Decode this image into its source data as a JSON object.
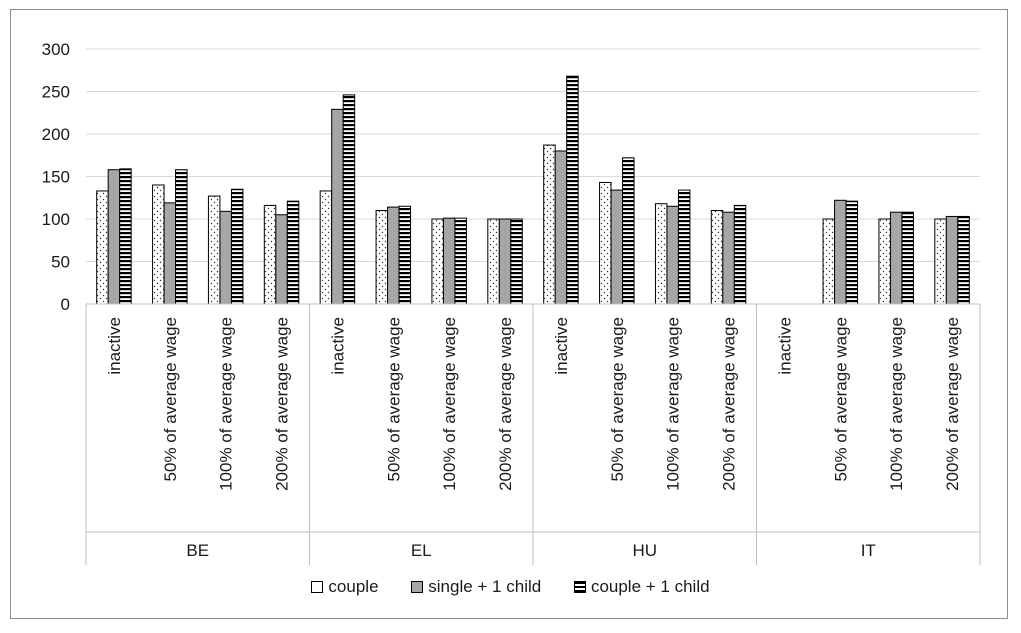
{
  "chart_data": {
    "type": "bar",
    "groups": [
      {
        "name": "BE",
        "categories": [
          "inactive",
          "50% of average wage",
          "100% of average wage",
          "200% of average wage"
        ]
      },
      {
        "name": "EL",
        "categories": [
          "inactive",
          "50% of average wage",
          "100% of average wage",
          "200% of average wage"
        ]
      },
      {
        "name": "HU",
        "categories": [
          "inactive",
          "50% of average wage",
          "100% of average wage",
          "200% of average wage"
        ]
      },
      {
        "name": "IT",
        "categories": [
          "inactive",
          "50% of average wage",
          "100% of average wage",
          "200% of average wage"
        ]
      }
    ],
    "series": [
      {
        "name": "couple",
        "pattern": "dotted",
        "values": [
          133,
          140,
          127,
          116,
          133,
          110,
          100,
          100,
          187,
          143,
          118,
          110,
          null,
          100,
          100,
          100
        ]
      },
      {
        "name": "single + 1 child",
        "pattern": "gray",
        "values": [
          158,
          119,
          109,
          105,
          229,
          114,
          101,
          100,
          180,
          134,
          115,
          108,
          null,
          122,
          108,
          103
        ]
      },
      {
        "name": "couple + 1 child",
        "pattern": "horizontal-stripes",
        "values": [
          159,
          158,
          135,
          121,
          246,
          115,
          101,
          100,
          268,
          172,
          134,
          116,
          null,
          121,
          108,
          103
        ]
      }
    ],
    "yticks": [
      "0",
      "50",
      "100",
      "150",
      "200",
      "250",
      "300"
    ],
    "ylim": [
      0,
      300
    ],
    "grid": true,
    "legend_position": "bottom",
    "colors": {
      "gray_fill": "#a6a6a6",
      "stripe": "#000000",
      "grid": "#d9d9d9",
      "frame": "#8c8c8c"
    }
  },
  "legend": {
    "items": [
      "couple",
      "single + 1 child",
      "couple + 1 child"
    ]
  }
}
